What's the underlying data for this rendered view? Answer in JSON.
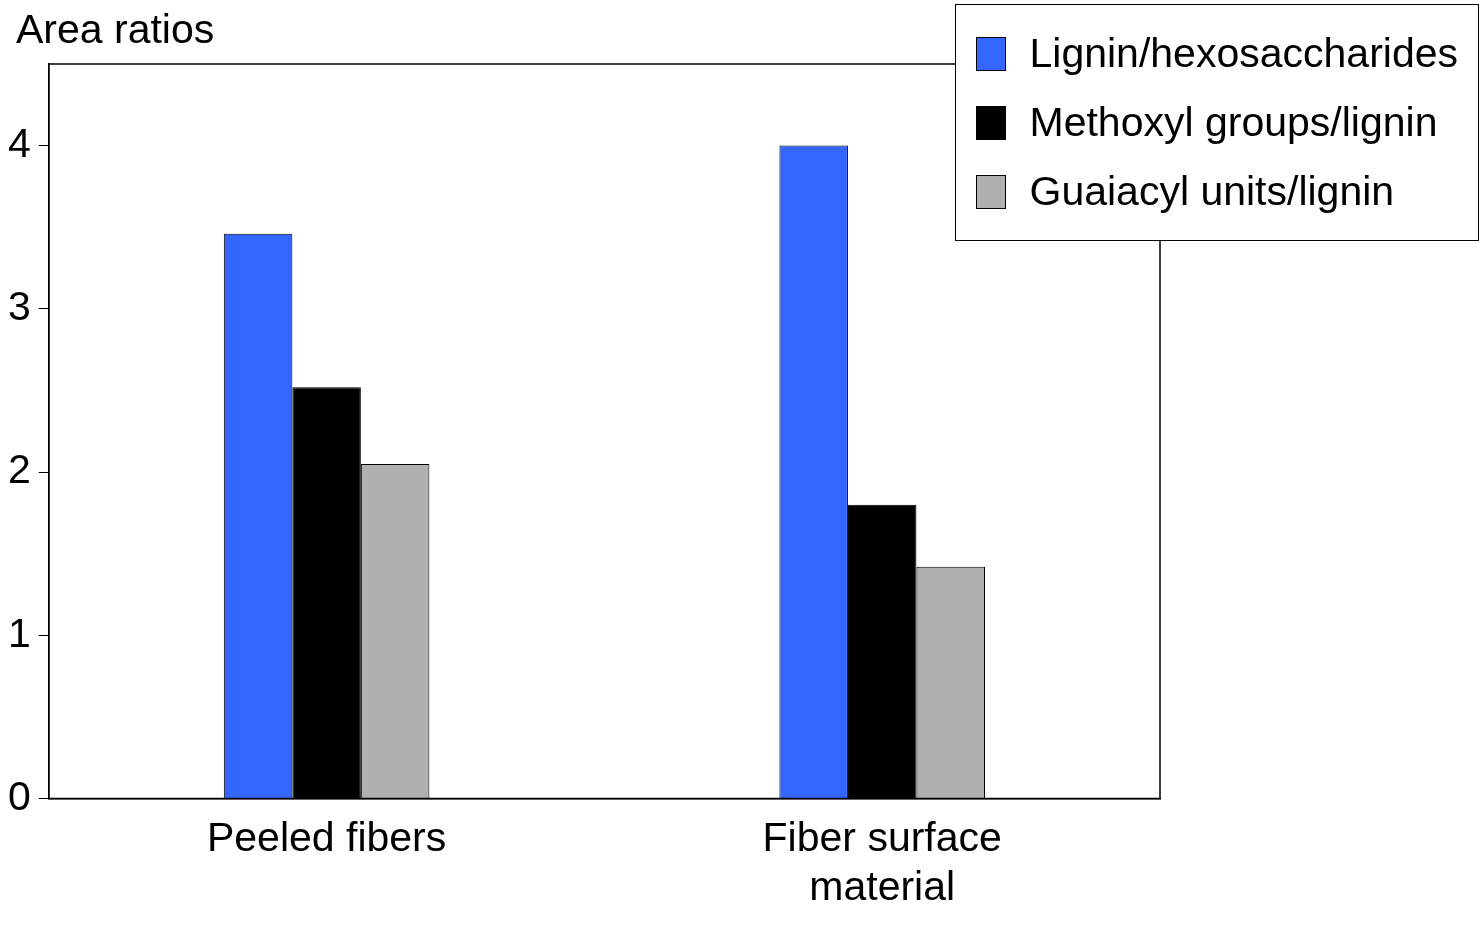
{
  "chart_data": {
    "type": "bar",
    "ylabel": "Area ratios",
    "categories": [
      "Peeled fibers",
      "Fiber surface material"
    ],
    "series": [
      {
        "name": "Lignin/hexosaccharides",
        "color": "#3366ff",
        "values": [
          3.46,
          4.0
        ]
      },
      {
        "name": "Methoxyl groups/lignin",
        "color": "#000000",
        "values": [
          2.52,
          1.8
        ]
      },
      {
        "name": "Guaiacyl units/lignin",
        "color": "#b0b0b0",
        "values": [
          2.05,
          1.42
        ]
      }
    ],
    "ylim": [
      0,
      4.5
    ],
    "yticks": [
      0,
      1,
      2,
      3,
      4
    ],
    "grid": false,
    "legend": "top right"
  }
}
